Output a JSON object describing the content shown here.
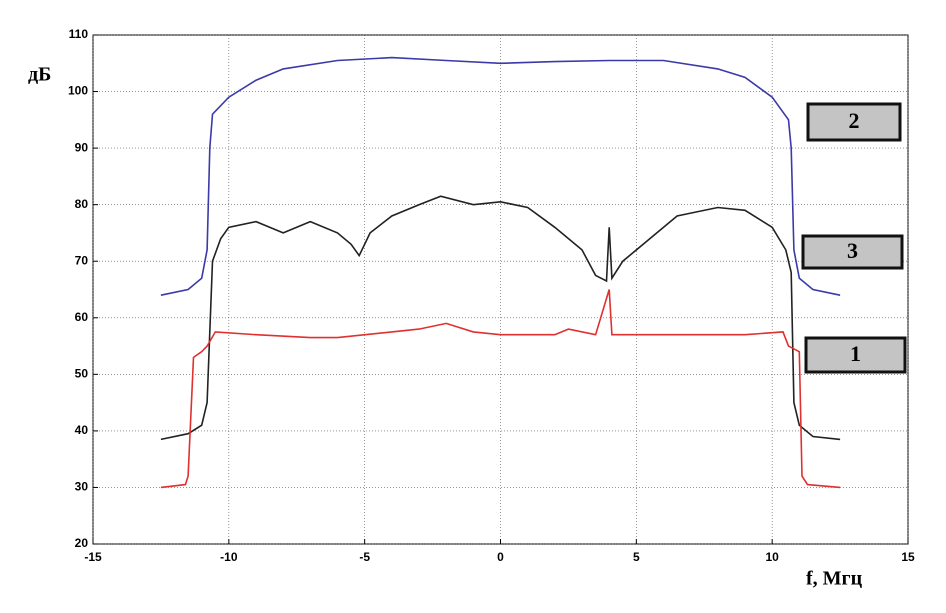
{
  "chart_data": {
    "type": "line",
    "y_label": "дБ",
    "x_label": "f, Мгц",
    "xlim": [
      -15,
      15
    ],
    "xticks": [
      -15,
      -10,
      -5,
      0,
      5,
      10,
      15
    ],
    "ylim": [
      20,
      110
    ],
    "yticks": [
      20,
      30,
      40,
      50,
      60,
      70,
      80,
      90,
      100,
      110
    ],
    "grid": true,
    "series": [
      {
        "name": "2",
        "color": "#3a3aa8",
        "x": [
          -12.5,
          -11.5,
          -11,
          -10.8,
          -10.7,
          -10.6,
          -10,
          -9,
          -8,
          -6,
          -4,
          -2,
          0,
          2,
          4,
          6,
          8,
          9,
          10,
          10.6,
          10.7,
          10.8,
          11,
          11.5,
          12.5
        ],
        "values": [
          64,
          65,
          67,
          72,
          90,
          96,
          99,
          102,
          104,
          105.5,
          106,
          105.5,
          105,
          105.3,
          105.5,
          105.5,
          104,
          102.5,
          99,
          95,
          90,
          72,
          67,
          65,
          64
        ]
      },
      {
        "name": "3",
        "color": "#222222",
        "x": [
          -12.5,
          -11.5,
          -11,
          -10.8,
          -10.6,
          -10.3,
          -10,
          -9,
          -8,
          -7,
          -6,
          -5.5,
          -5.2,
          -4.8,
          -4,
          -3,
          -2.2,
          -1,
          0,
          1,
          2,
          3,
          3.5,
          3.9,
          4,
          4.1,
          4.5,
          5.5,
          6.5,
          7,
          8,
          9,
          10,
          10.5,
          10.7,
          10.8,
          11,
          11.5,
          12.5
        ],
        "values": [
          38.5,
          39.5,
          41,
          45,
          70,
          74,
          76,
          77,
          75,
          77,
          75,
          73,
          71,
          75,
          78,
          80,
          81.5,
          80,
          80.5,
          79.5,
          76,
          72,
          67.5,
          66.5,
          76,
          67,
          70,
          74,
          78,
          78.5,
          79.5,
          79,
          76,
          72,
          68,
          45,
          41,
          39,
          38.5
        ]
      },
      {
        "name": "1",
        "color": "#e03030",
        "x": [
          -12.5,
          -11.6,
          -11.5,
          -11.3,
          -11,
          -10.8,
          -10.5,
          -9,
          -7,
          -6,
          -4,
          -3,
          -2,
          -1,
          0,
          2,
          2.5,
          3.5,
          4,
          4.1,
          5,
          7,
          9,
          10.4,
          10.6,
          11,
          11.1,
          11.3,
          12.5
        ],
        "values": [
          30,
          30.5,
          32,
          53,
          54,
          55,
          57.5,
          57,
          56.5,
          56.5,
          57.5,
          58,
          59,
          57.5,
          57,
          57,
          58,
          57,
          65,
          57,
          57,
          57,
          57,
          57.5,
          55,
          54,
          32,
          30.5,
          30
        ]
      }
    ]
  }
}
